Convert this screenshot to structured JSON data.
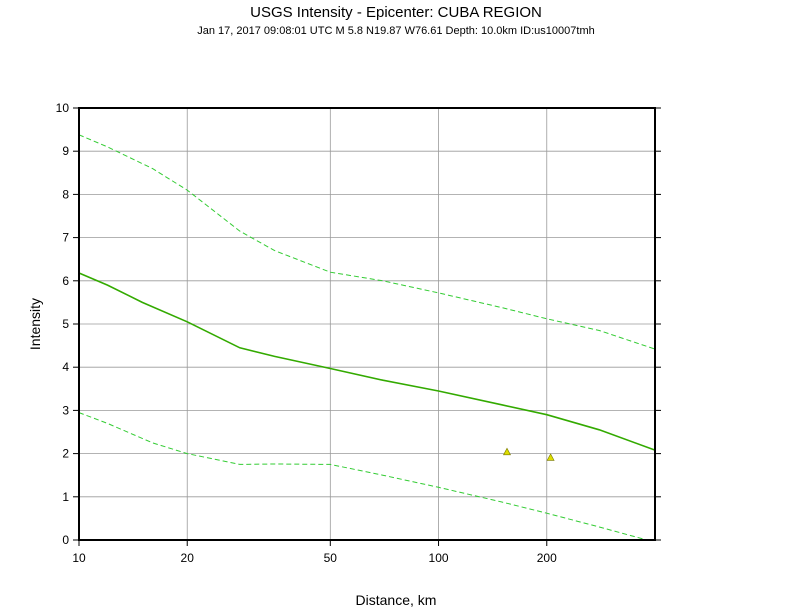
{
  "chart_data": {
    "type": "line",
    "title": "USGS Intensity -  Epicenter: CUBA REGION",
    "subtitle": "Jan 17, 2017 09:08:01 UTC   M 5.8   N19.87 W76.61   Depth: 10.0km   ID:us10007tmh",
    "xlabel": "Distance, km",
    "ylabel": "Intensity",
    "x_scale": "log",
    "xlim": [
      10,
      400
    ],
    "ylim": [
      0,
      10
    ],
    "x_ticks": [
      10,
      20,
      50,
      100,
      200
    ],
    "x_tick_labels": [
      "10",
      "20",
      "50",
      "100",
      "200"
    ],
    "y_ticks": [
      0,
      1,
      2,
      3,
      4,
      5,
      6,
      7,
      8,
      9,
      10
    ],
    "y_tick_labels": [
      "0",
      "1",
      "2",
      "3",
      "4",
      "5",
      "6",
      "7",
      "8",
      "9",
      "10"
    ],
    "grid": true,
    "series": [
      {
        "style": "solid",
        "color": "#33aa00",
        "x": [
          10,
          12,
          15,
          20,
          28,
          35,
          50,
          70,
          100,
          150,
          200,
          280,
          400
        ],
        "y": [
          6.18,
          5.9,
          5.5,
          5.05,
          4.45,
          4.25,
          3.97,
          3.7,
          3.45,
          3.13,
          2.9,
          2.55,
          2.08
        ]
      },
      {
        "style": "dashed",
        "color": "#33cc33",
        "x": [
          10,
          12,
          16,
          20,
          28,
          35,
          50,
          70,
          100,
          150,
          200,
          280,
          400
        ],
        "y": [
          9.38,
          9.1,
          8.6,
          8.1,
          7.15,
          6.7,
          6.2,
          6.0,
          5.72,
          5.38,
          5.12,
          4.85,
          4.42
        ]
      },
      {
        "style": "dashed",
        "color": "#33cc33",
        "x": [
          10,
          12,
          16,
          20,
          28,
          35,
          50,
          70,
          100,
          150,
          200,
          280,
          380
        ],
        "y": [
          2.95,
          2.7,
          2.25,
          2.0,
          1.75,
          1.76,
          1.75,
          1.5,
          1.22,
          0.88,
          0.62,
          0.3,
          0.0
        ]
      }
    ],
    "points": {
      "marker": "triangle",
      "color": "#dddd00",
      "x": [
        155,
        205
      ],
      "y": [
        2.03,
        1.9
      ]
    }
  }
}
